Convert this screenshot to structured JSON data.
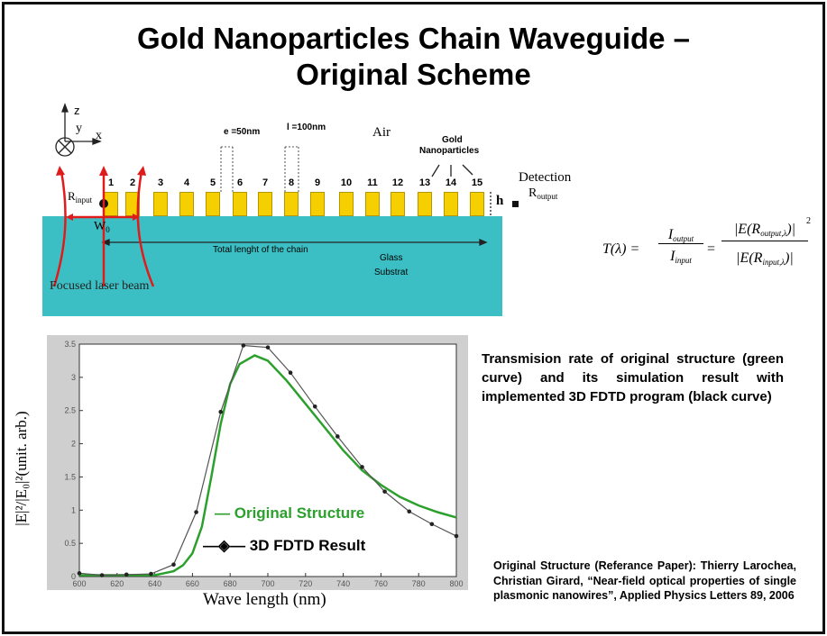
{
  "slide": {
    "title_line1": "Gold Nanoparticles Chain Waveguide –",
    "title_line2": "Original Scheme"
  },
  "diagram": {
    "axes": {
      "z": "z",
      "y": "y",
      "x": "x"
    },
    "e_label": "e =50nm",
    "l_label": "l =100nm",
    "air": "Air",
    "gold_label_1": "Gold",
    "gold_label_2": "Nanoparticles",
    "detection": "Detection",
    "r_output": "R",
    "r_output_sub": "output",
    "r_input": "R",
    "r_input_sub": "input",
    "w0": "W",
    "w0_sub": "0",
    "h": "h",
    "total_length": "Total lenght of the chain",
    "glass_1": "Glass",
    "glass_2": "Substrat",
    "laser": "Focused laser beam",
    "particles": [
      "1",
      "2",
      "3",
      "4",
      "5",
      "6",
      "7",
      "8",
      "9",
      "10",
      "11",
      "12",
      "13",
      "14",
      "15"
    ],
    "colors": {
      "substrate": "#3bbfc4",
      "gold": "#f5cf00",
      "laser": "#e01b1b"
    }
  },
  "formula": {
    "lhs": "T(λ) =",
    "num1": "I",
    "num1_sub": "output",
    "den1": "I",
    "den1_sub": "input",
    "eq": "=",
    "num2": "|E(R",
    "num2_sub": "output,λ",
    "num2_end": ")|",
    "den2": "|E(R",
    "den2_sub": "input,λ",
    "den2_end": ")|",
    "power": "2"
  },
  "description": "Transmision rate of original structure (green curve) and its simulation result with implemented 3D FDTD program (black curve)",
  "reference": "Original Structure (Referance Paper): Thierry Larochea, Christian Girard, “Near-field optical properties of single plasmonic nanowires”, Applied Physics Letters 89, 2006",
  "chart_data": {
    "type": "line",
    "xlabel": "Wave length (nm)",
    "ylabel": "|E|²/|E₀|²(unit. arb.)",
    "xlim": [
      600,
      800
    ],
    "ylim": [
      0,
      3.5
    ],
    "xticks": [
      "600",
      "620",
      "640",
      "660",
      "680",
      "700",
      "720",
      "740",
      "760",
      "780",
      "800"
    ],
    "yticks": [
      "0",
      "0.5",
      "1",
      "1.5",
      "2",
      "2.5",
      "3",
      "3.5"
    ],
    "legend": [
      "Original Structure",
      "3D FDTD Result"
    ],
    "series": [
      {
        "name": "Original Structure",
        "color": "#2ca02c",
        "x": [
          600,
          640,
          650,
          655,
          660,
          665,
          670,
          675,
          680,
          685,
          693,
          700,
          710,
          720,
          730,
          740,
          750,
          760,
          770,
          780,
          790,
          800
        ],
        "y": [
          0.02,
          0.02,
          0.08,
          0.17,
          0.35,
          0.75,
          1.5,
          2.3,
          2.9,
          3.2,
          3.33,
          3.25,
          2.95,
          2.6,
          2.25,
          1.9,
          1.6,
          1.38,
          1.2,
          1.07,
          0.97,
          0.89
        ]
      },
      {
        "name": "3D FDTD Result",
        "color": "#555555",
        "x": [
          600,
          612,
          625,
          638,
          650,
          662,
          675,
          687,
          700,
          712,
          725,
          737,
          750,
          762,
          775,
          787,
          800
        ],
        "y": [
          0.05,
          0.02,
          0.03,
          0.04,
          0.18,
          0.97,
          2.48,
          3.48,
          3.45,
          3.07,
          2.56,
          2.11,
          1.65,
          1.28,
          0.98,
          0.79,
          0.61
        ]
      }
    ]
  }
}
